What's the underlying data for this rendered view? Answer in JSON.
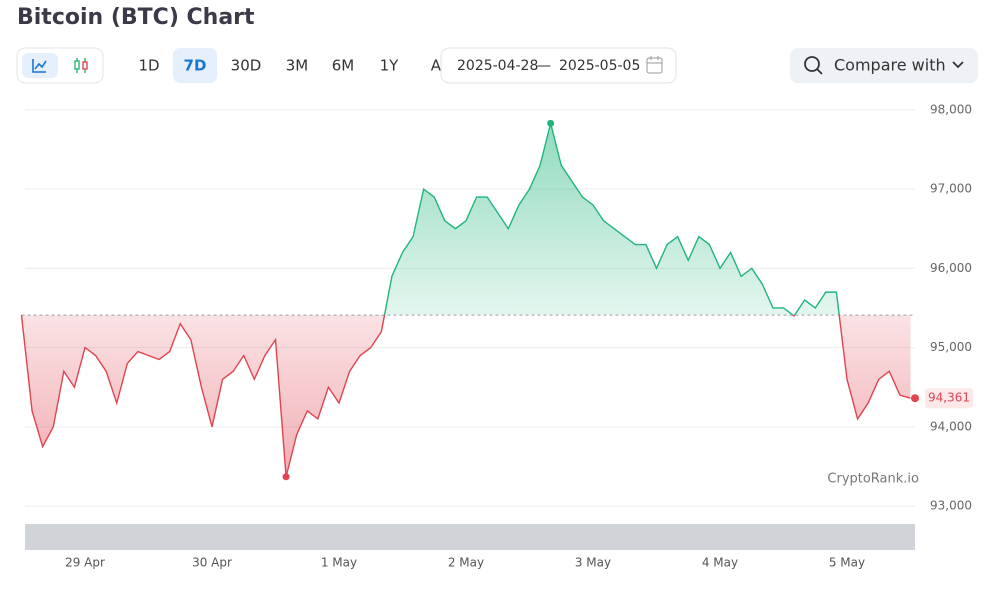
{
  "chart_data": {
    "type": "area",
    "title": "Bitcoin (BTC) Chart",
    "controls": {
      "ranges": [
        "1D",
        "7D",
        "30D",
        "3M",
        "6M",
        "1Y",
        "All"
      ],
      "selected_range": "7D",
      "date_from": "2025-04-28",
      "date_separator": "—",
      "date_to": "2025-05-05",
      "compare": "Compare with"
    },
    "credit": "CryptoRank.io",
    "xlim": [
      0,
      84
    ],
    "xticks": [
      {
        "value": 6,
        "label": "29 Apr"
      },
      {
        "value": 18,
        "label": "30 Apr"
      },
      {
        "value": 30,
        "label": "1 May"
      },
      {
        "value": 42,
        "label": "2 May"
      },
      {
        "value": 54,
        "label": "3 May"
      },
      {
        "value": 66,
        "label": "4 May"
      },
      {
        "value": 78,
        "label": "5 May"
      }
    ],
    "ylim": [
      92900,
      98200
    ],
    "yticks": [
      {
        "value": 93000,
        "label": "93,000"
      },
      {
        "value": 94000,
        "label": "94,000"
      },
      {
        "value": 95000,
        "label": "95,000"
      },
      {
        "value": 96000,
        "label": "96,000"
      },
      {
        "value": 97000,
        "label": "97,000"
      },
      {
        "value": 98000,
        "label": "98,000"
      }
    ],
    "grid": true,
    "series": [
      {
        "name": "BTC",
        "up_color": "#1fb57a",
        "down_color": "#df4450",
        "values": [
          95410,
          94200,
          93750,
          94000,
          94700,
          94500,
          95000,
          94900,
          94700,
          94300,
          94800,
          94950,
          94900,
          94850,
          94950,
          95300,
          95100,
          94500,
          94000,
          94600,
          94700,
          94900,
          94600,
          94900,
          95100,
          93370,
          93900,
          94200,
          94100,
          94500,
          94300,
          94700,
          94900,
          95000,
          95200,
          95900,
          96200,
          96400,
          97000,
          96900,
          96600,
          96500,
          96600,
          96900,
          96900,
          96700,
          96500,
          96800,
          97000,
          97300,
          97830,
          97300,
          97100,
          96900,
          96800,
          96600,
          96500,
          96400,
          96300,
          96300,
          96000,
          96300,
          96400,
          96100,
          96400,
          96300,
          96000,
          96200,
          95900,
          96000,
          95800,
          95500,
          95500,
          95400,
          95600,
          95500,
          95700,
          95700,
          94600,
          94100,
          94300,
          94600,
          94700,
          94400,
          94361
        ]
      }
    ],
    "current_price": {
      "value": 94361,
      "label": "94,361"
    }
  }
}
